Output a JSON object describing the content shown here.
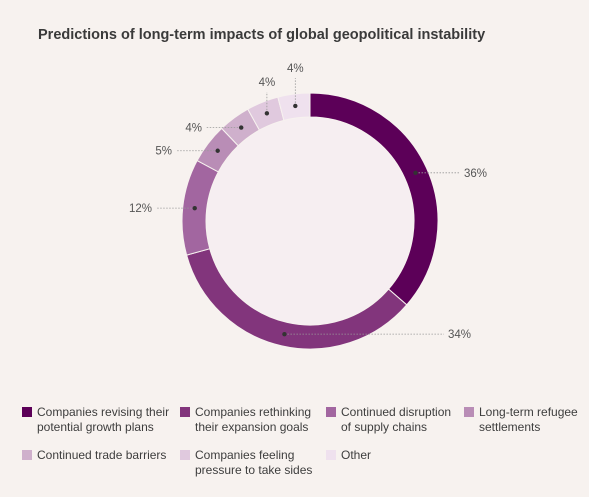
{
  "chart_data": {
    "type": "pie",
    "title": "Predictions of long-term impacts of global geopolitical instability",
    "categories": [
      "Companies revising their\npotential growth plans",
      "Companies rethinking\ntheir expansion goals",
      "Continued disruption\nof supply chains",
      "Long-term refugee\nsettlements",
      "Continued trade barriers",
      "Companies feeling\npressure to take sides",
      "Other"
    ],
    "values": [
      36,
      34,
      12,
      5,
      4,
      4,
      4
    ],
    "value_labels": [
      "36%",
      "34%",
      "12%",
      "5%",
      "4%",
      "4%",
      "4%"
    ],
    "colors": [
      "#5c0058",
      "#82357c",
      "#a266a0",
      "#b98db6",
      "#cfb0cc",
      "#e0c9de",
      "#efe1ee"
    ],
    "legend_position": "bottom"
  }
}
